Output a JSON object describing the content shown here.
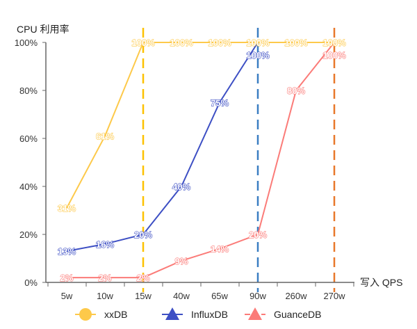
{
  "chart_data": {
    "type": "line",
    "title": "",
    "ylabel": "CPU 利用率",
    "xlabel": "写入 QPS",
    "categories": [
      "5w",
      "10w",
      "15w",
      "40w",
      "65w",
      "90w",
      "260w",
      "270w"
    ],
    "yticks": [
      "0%",
      "20%",
      "40%",
      "60%",
      "80%",
      "100%"
    ],
    "ylim": [
      0,
      100
    ],
    "grid": false,
    "legend_position": "bottom",
    "series": [
      {
        "name": "xxDB",
        "color": "#fdc94a",
        "marker": "circle",
        "values": [
          31,
          61,
          100,
          100,
          100,
          100,
          100,
          100
        ]
      },
      {
        "name": "InfluxDB",
        "color": "#3d4fc4",
        "marker": "triangle",
        "values": [
          13,
          16,
          20,
          40,
          75,
          100,
          null,
          null
        ]
      },
      {
        "name": "GuanceDB",
        "color": "#fb7b78",
        "marker": "triangle",
        "values": [
          2,
          2,
          2,
          9,
          14,
          20,
          80,
          100
        ]
      }
    ],
    "reference_lines": [
      {
        "category": "15w",
        "color": "#fdc100",
        "style": "dashed"
      },
      {
        "category": "90w",
        "color": "#3a7ec2",
        "style": "dashed"
      },
      {
        "category": "270w",
        "color": "#e8782a",
        "style": "dashed"
      }
    ]
  }
}
